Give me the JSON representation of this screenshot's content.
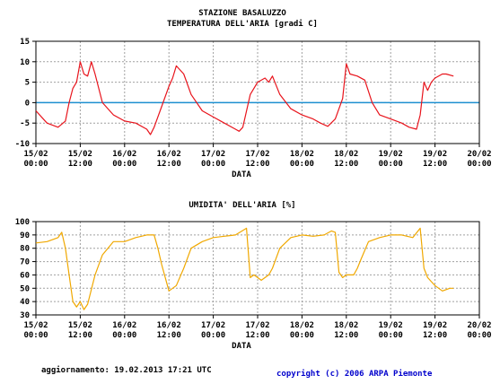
{
  "header": {
    "station": "STAZIONE BASALUZZO",
    "temp_title": "TEMPERATURA DELL'ARIA [gradi C]",
    "hum_title": "UMIDITA' DELL'ARIA [%]"
  },
  "footer": {
    "update": "aggiornamento: 19.02.2013 17:21 UTC",
    "copyright": "copyright (c) 2006 ARPA Piemonte"
  },
  "colors": {
    "temperature": "#e8141c",
    "humidity": "#f0a800",
    "zero_line": "#1e90d0"
  },
  "chart_data": [
    {
      "type": "line",
      "title": "TEMPERATURA DELL'ARIA [gradi C]",
      "xlabel": "DATA",
      "ylim": [
        -10,
        15
      ],
      "yticks": [
        "15",
        "10",
        "5",
        "0",
        "-5",
        "-10"
      ],
      "xticks": [
        {
          "date": "15/02",
          "time": "00:00"
        },
        {
          "date": "15/02",
          "time": "12:00"
        },
        {
          "date": "16/02",
          "time": "00:00"
        },
        {
          "date": "16/02",
          "time": "12:00"
        },
        {
          "date": "17/02",
          "time": "00:00"
        },
        {
          "date": "17/02",
          "time": "12:00"
        },
        {
          "date": "18/02",
          "time": "00:00"
        },
        {
          "date": "18/02",
          "time": "12:00"
        },
        {
          "date": "19/02",
          "time": "00:00"
        },
        {
          "date": "19/02",
          "time": "12:00"
        },
        {
          "date": "20/02",
          "time": "00:00"
        }
      ],
      "reference_line": 0,
      "grid": true,
      "series": [
        {
          "x": [
            "15/02 00:00",
            "15/02 03:00",
            "15/02 06:00",
            "15/02 08:00",
            "15/02 09:00",
            "15/02 10:00",
            "15/02 11:00",
            "15/02 12:00",
            "15/02 13:00",
            "15/02 14:00",
            "15/02 15:00",
            "15/02 16:00",
            "15/02 18:00",
            "15/02 21:00",
            "16/02 00:00",
            "16/02 03:00",
            "16/02 06:00",
            "16/02 07:00",
            "16/02 08:00",
            "16/02 10:00",
            "16/02 12:00",
            "16/02 13:00",
            "16/02 14:00",
            "16/02 16:00",
            "16/02 18:00",
            "16/02 21:00",
            "17/02 00:00",
            "17/02 03:00",
            "17/02 06:00",
            "17/02 07:00",
            "17/02 08:00",
            "17/02 10:00",
            "17/02 12:00",
            "17/02 14:00",
            "17/02 15:00",
            "17/02 16:00",
            "17/02 18:00",
            "17/02 21:00",
            "18/02 00:00",
            "18/02 03:00",
            "18/02 05:00",
            "18/02 07:00",
            "18/02 09:00",
            "18/02 11:00",
            "18/02 12:00",
            "18/02 13:00",
            "18/02 15:00",
            "18/02 17:00",
            "18/02 19:00",
            "18/02 21:00",
            "19/02 00:00",
            "19/02 03:00",
            "19/02 05:00",
            "19/02 07:00",
            "19/02 08:00",
            "19/02 09:00",
            "19/02 10:00",
            "19/02 11:00",
            "19/02 12:00",
            "19/02 14:00",
            "19/02 15:00",
            "19/02 17:00"
          ],
          "values": [
            -2,
            -5,
            -6,
            -4.5,
            0,
            3.5,
            5,
            10,
            7,
            6.5,
            10,
            7,
            0,
            -3,
            -4.5,
            -5,
            -6.5,
            -7.8,
            -6,
            -1,
            4,
            6,
            9,
            7,
            2,
            -2,
            -3.5,
            -5,
            -6.5,
            -7,
            -6,
            2,
            5,
            6,
            5,
            6.5,
            2,
            -1.5,
            -3,
            -4,
            -5,
            -5.8,
            -4,
            1,
            9.5,
            7,
            6.5,
            5.5,
            0,
            -3,
            -4,
            -5,
            -6,
            -6.5,
            -3,
            5,
            3,
            5,
            6,
            7,
            7,
            6.5
          ]
        }
      ]
    },
    {
      "type": "line",
      "title": "UMIDITA' DELL'ARIA [%]",
      "xlabel": "DATA",
      "ylim": [
        30,
        100
      ],
      "yticks": [
        "100",
        "90",
        "80",
        "70",
        "60",
        "50",
        "40",
        "30"
      ],
      "xticks": [
        {
          "date": "15/02",
          "time": "00:00"
        },
        {
          "date": "15/02",
          "time": "12:00"
        },
        {
          "date": "16/02",
          "time": "00:00"
        },
        {
          "date": "16/02",
          "time": "12:00"
        },
        {
          "date": "17/02",
          "time": "00:00"
        },
        {
          "date": "17/02",
          "time": "12:00"
        },
        {
          "date": "18/02",
          "time": "00:00"
        },
        {
          "date": "18/02",
          "time": "12:00"
        },
        {
          "date": "19/02",
          "time": "00:00"
        },
        {
          "date": "19/02",
          "time": "12:00"
        },
        {
          "date": "20/02",
          "time": "00:00"
        }
      ],
      "grid": true,
      "series": [
        {
          "x": [
            "15/02 00:00",
            "15/02 03:00",
            "15/02 06:00",
            "15/02 07:00",
            "15/02 08:00",
            "15/02 09:00",
            "15/02 10:00",
            "15/02 11:00",
            "15/02 12:00",
            "15/02 13:00",
            "15/02 14:00",
            "15/02 16:00",
            "15/02 18:00",
            "15/02 21:00",
            "16/02 00:00",
            "16/02 03:00",
            "16/02 06:00",
            "16/02 08:00",
            "16/02 09:00",
            "16/02 10:00",
            "16/02 12:00",
            "16/02 14:00",
            "16/02 16:00",
            "16/02 18:00",
            "16/02 21:00",
            "17/02 00:00",
            "17/02 03:00",
            "17/02 06:00",
            "17/02 09:00",
            "17/02 10:00",
            "17/02 11:00",
            "17/02 13:00",
            "17/02 15:00",
            "17/02 16:00",
            "17/02 18:00",
            "17/02 21:00",
            "18/02 00:00",
            "18/02 03:00",
            "18/02 06:00",
            "18/02 08:00",
            "18/02 09:00",
            "18/02 10:00",
            "18/02 11:00",
            "18/02 12:00",
            "18/02 14:00",
            "18/02 15:00",
            "18/02 16:00",
            "18/02 18:00",
            "18/02 21:00",
            "19/02 00:00",
            "19/02 03:00",
            "19/02 06:00",
            "19/02 08:00",
            "19/02 09:00",
            "19/02 10:00",
            "19/02 11:00",
            "19/02 12:00",
            "19/02 13:00",
            "19/02 14:00",
            "19/02 16:00",
            "19/02 17:00"
          ],
          "values": [
            84,
            85,
            88,
            92,
            80,
            60,
            40,
            36,
            40,
            34,
            38,
            60,
            75,
            85,
            85,
            88,
            90,
            90,
            80,
            68,
            48,
            52,
            65,
            80,
            85,
            88,
            89,
            90,
            95,
            58,
            60,
            56,
            60,
            65,
            80,
            88,
            90,
            89,
            90,
            93,
            92,
            62,
            58,
            60,
            60,
            65,
            72,
            85,
            88,
            90,
            90,
            88,
            95,
            65,
            58,
            55,
            52,
            50,
            48,
            50,
            50
          ]
        }
      ]
    }
  ]
}
